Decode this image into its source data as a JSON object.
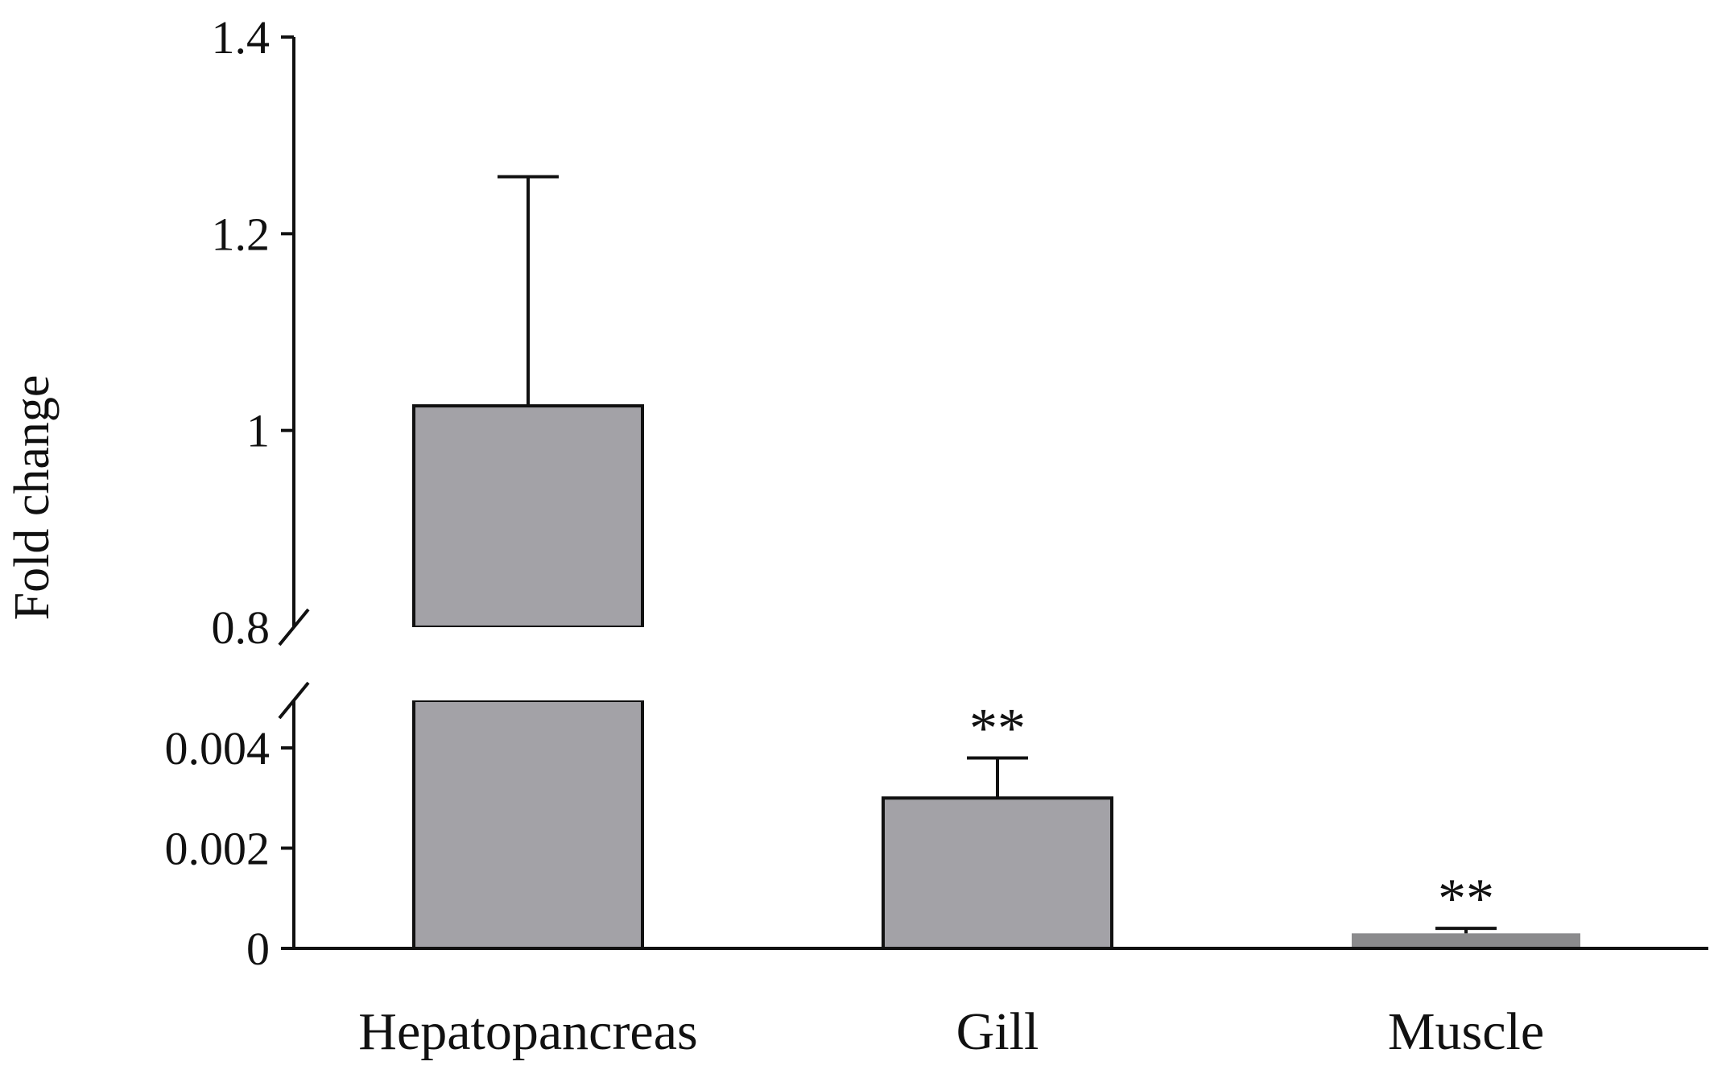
{
  "chart_data": {
    "type": "bar",
    "title": "",
    "ylabel": "Fold change",
    "xlabel": "",
    "categories": [
      "Hepatopancreas",
      "Gill",
      "Muscle"
    ],
    "series": [
      {
        "values": [
          1.025,
          0.003,
          0.0003
        ],
        "error_upper": [
          1.258,
          0.0038,
          0.0004
        ],
        "significance": [
          "",
          "**",
          "**"
        ]
      }
    ],
    "axis_break": {
      "lower_segment": {
        "ylim": [
          0,
          0.005
        ],
        "ticks": [
          0,
          0.002,
          0.004
        ],
        "tick_labels": [
          "0",
          "0.002",
          "0.004"
        ]
      },
      "upper_segment": {
        "ylim": [
          0.8,
          1.4
        ],
        "ticks": [
          0.8,
          1.0,
          1.2,
          1.4
        ],
        "tick_labels": [
          "0.8",
          "1",
          "1.2",
          "1.4"
        ]
      }
    },
    "grid": false,
    "legend": "none",
    "bar_color": "#a3a2a7",
    "muscle_bar_color": "#8b8b8d"
  }
}
